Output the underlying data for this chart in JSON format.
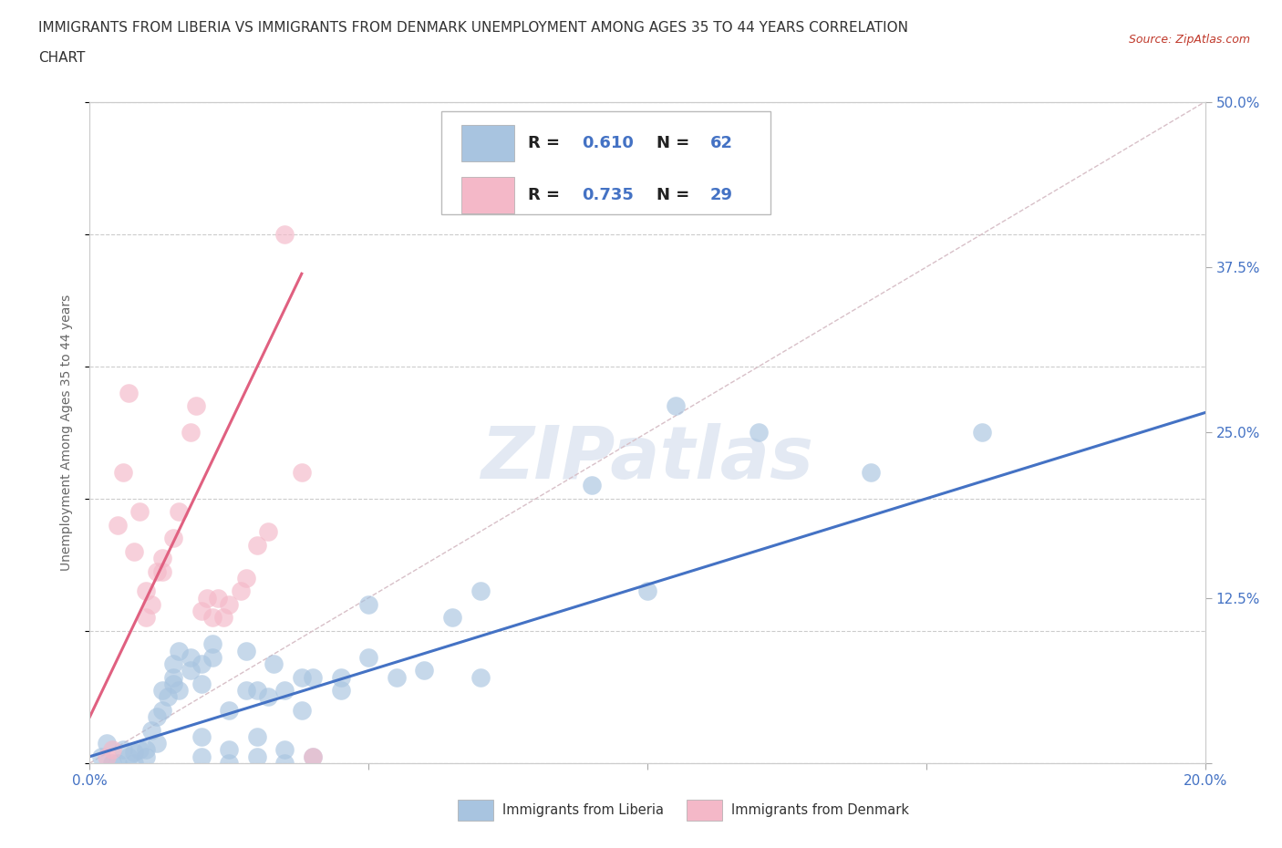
{
  "title_line1": "IMMIGRANTS FROM LIBERIA VS IMMIGRANTS FROM DENMARK UNEMPLOYMENT AMONG AGES 35 TO 44 YEARS CORRELATION",
  "title_line2": "CHART",
  "source": "Source: ZipAtlas.com",
  "ylabel": "Unemployment Among Ages 35 to 44 years",
  "x_min": 0.0,
  "x_max": 0.2,
  "y_min": 0.0,
  "y_max": 0.5,
  "x_ticks": [
    0.0,
    0.05,
    0.1,
    0.15,
    0.2
  ],
  "x_tick_labels": [
    "0.0%",
    "",
    "",
    "",
    "20.0%"
  ],
  "y_ticks": [
    0.0,
    0.125,
    0.25,
    0.375,
    0.5
  ],
  "y_tick_labels_right": [
    "",
    "12.5%",
    "25.0%",
    "37.5%",
    "50.0%"
  ],
  "liberia_color": "#a8c4e0",
  "denmark_color": "#f4b8c8",
  "liberia_line_color": "#4472c4",
  "denmark_line_color": "#e06080",
  "diagonal_color": "#d8c0c8",
  "background_color": "#ffffff",
  "watermark": "ZIPatlas",
  "title_color": "#333333",
  "tick_color": "#4472c4",
  "ylabel_color": "#666666",
  "source_color": "#c0392b",
  "legend_R_color": "#333333",
  "legend_N_color": "#4472c4",
  "liberia_scatter": [
    [
      0.002,
      0.005
    ],
    [
      0.003,
      0.015
    ],
    [
      0.004,
      0.0
    ],
    [
      0.005,
      0.0
    ],
    [
      0.006,
      0.01
    ],
    [
      0.007,
      0.005
    ],
    [
      0.008,
      0.0
    ],
    [
      0.008,
      0.008
    ],
    [
      0.009,
      0.01
    ],
    [
      0.01,
      0.005
    ],
    [
      0.01,
      0.01
    ],
    [
      0.011,
      0.025
    ],
    [
      0.012,
      0.015
    ],
    [
      0.012,
      0.035
    ],
    [
      0.013,
      0.04
    ],
    [
      0.013,
      0.055
    ],
    [
      0.014,
      0.05
    ],
    [
      0.015,
      0.06
    ],
    [
      0.015,
      0.065
    ],
    [
      0.015,
      0.075
    ],
    [
      0.016,
      0.055
    ],
    [
      0.016,
      0.085
    ],
    [
      0.018,
      0.07
    ],
    [
      0.018,
      0.08
    ],
    [
      0.02,
      0.005
    ],
    [
      0.02,
      0.02
    ],
    [
      0.02,
      0.06
    ],
    [
      0.02,
      0.075
    ],
    [
      0.022,
      0.08
    ],
    [
      0.022,
      0.09
    ],
    [
      0.025,
      0.0
    ],
    [
      0.025,
      0.01
    ],
    [
      0.025,
      0.04
    ],
    [
      0.028,
      0.055
    ],
    [
      0.028,
      0.085
    ],
    [
      0.03,
      0.005
    ],
    [
      0.03,
      0.02
    ],
    [
      0.03,
      0.055
    ],
    [
      0.032,
      0.05
    ],
    [
      0.033,
      0.075
    ],
    [
      0.035,
      0.0
    ],
    [
      0.035,
      0.01
    ],
    [
      0.035,
      0.055
    ],
    [
      0.038,
      0.04
    ],
    [
      0.038,
      0.065
    ],
    [
      0.04,
      0.005
    ],
    [
      0.04,
      0.065
    ],
    [
      0.045,
      0.055
    ],
    [
      0.045,
      0.065
    ],
    [
      0.05,
      0.08
    ],
    [
      0.05,
      0.12
    ],
    [
      0.055,
      0.065
    ],
    [
      0.06,
      0.07
    ],
    [
      0.065,
      0.11
    ],
    [
      0.07,
      0.065
    ],
    [
      0.07,
      0.13
    ],
    [
      0.09,
      0.21
    ],
    [
      0.1,
      0.13
    ],
    [
      0.105,
      0.27
    ],
    [
      0.12,
      0.25
    ],
    [
      0.14,
      0.22
    ],
    [
      0.16,
      0.25
    ]
  ],
  "denmark_scatter": [
    [
      0.003,
      0.005
    ],
    [
      0.004,
      0.01
    ],
    [
      0.005,
      0.18
    ],
    [
      0.006,
      0.22
    ],
    [
      0.007,
      0.28
    ],
    [
      0.008,
      0.16
    ],
    [
      0.009,
      0.19
    ],
    [
      0.01,
      0.11
    ],
    [
      0.01,
      0.13
    ],
    [
      0.011,
      0.12
    ],
    [
      0.012,
      0.145
    ],
    [
      0.013,
      0.145
    ],
    [
      0.013,
      0.155
    ],
    [
      0.015,
      0.17
    ],
    [
      0.016,
      0.19
    ],
    [
      0.018,
      0.25
    ],
    [
      0.019,
      0.27
    ],
    [
      0.02,
      0.115
    ],
    [
      0.021,
      0.125
    ],
    [
      0.022,
      0.11
    ],
    [
      0.023,
      0.125
    ],
    [
      0.024,
      0.11
    ],
    [
      0.025,
      0.12
    ],
    [
      0.027,
      0.13
    ],
    [
      0.028,
      0.14
    ],
    [
      0.03,
      0.165
    ],
    [
      0.032,
      0.175
    ],
    [
      0.035,
      0.4
    ],
    [
      0.038,
      0.22
    ],
    [
      0.04,
      0.005
    ]
  ],
  "liberia_line_x": [
    0.0,
    0.2
  ],
  "liberia_line_y": [
    0.005,
    0.265
  ],
  "denmark_line_x": [
    0.0,
    0.038
  ],
  "denmark_line_y": [
    0.035,
    0.37
  ]
}
